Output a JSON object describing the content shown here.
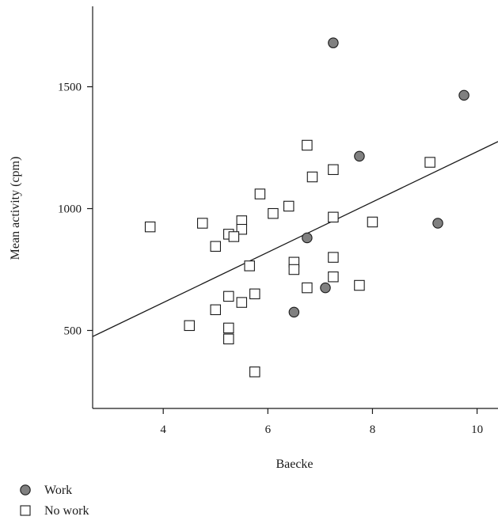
{
  "chart_data": {
    "type": "scatter",
    "title": "",
    "xlabel": "Baecke",
    "ylabel": "Mean activity (cpm)",
    "xlim": [
      2.65,
      10.4
    ],
    "ylim": [
      180,
      1830
    ],
    "xticks": [
      4,
      6,
      8,
      10
    ],
    "yticks": [
      500,
      1000,
      1500
    ],
    "grid": false,
    "legend_position": "bottom-left",
    "regression_line": {
      "x": [
        2.65,
        10.4
      ],
      "y": [
        475,
        1275
      ]
    },
    "series": [
      {
        "name": "Work",
        "marker": "circle",
        "color": "#808080",
        "points": [
          {
            "x": 7.25,
            "y": 1680
          },
          {
            "x": 9.75,
            "y": 1465
          },
          {
            "x": 7.75,
            "y": 1215
          },
          {
            "x": 9.25,
            "y": 940
          },
          {
            "x": 6.75,
            "y": 880
          },
          {
            "x": 7.1,
            "y": 675
          },
          {
            "x": 6.5,
            "y": 575
          }
        ]
      },
      {
        "name": "No work",
        "marker": "square",
        "color": "#ffffff",
        "points": [
          {
            "x": 6.75,
            "y": 1260
          },
          {
            "x": 9.1,
            "y": 1190
          },
          {
            "x": 7.25,
            "y": 1160
          },
          {
            "x": 6.85,
            "y": 1130
          },
          {
            "x": 5.85,
            "y": 1060
          },
          {
            "x": 6.4,
            "y": 1010
          },
          {
            "x": 6.1,
            "y": 980
          },
          {
            "x": 7.25,
            "y": 965
          },
          {
            "x": 5.5,
            "y": 950
          },
          {
            "x": 8.0,
            "y": 945
          },
          {
            "x": 4.75,
            "y": 940
          },
          {
            "x": 3.75,
            "y": 925
          },
          {
            "x": 5.5,
            "y": 915
          },
          {
            "x": 5.25,
            "y": 895
          },
          {
            "x": 5.35,
            "y": 885
          },
          {
            "x": 5.0,
            "y": 845
          },
          {
            "x": 7.25,
            "y": 800
          },
          {
            "x": 6.5,
            "y": 780
          },
          {
            "x": 5.65,
            "y": 765
          },
          {
            "x": 6.5,
            "y": 750
          },
          {
            "x": 7.25,
            "y": 720
          },
          {
            "x": 7.75,
            "y": 685
          },
          {
            "x": 6.75,
            "y": 675
          },
          {
            "x": 5.75,
            "y": 650
          },
          {
            "x": 5.25,
            "y": 640
          },
          {
            "x": 5.5,
            "y": 615
          },
          {
            "x": 5.0,
            "y": 585
          },
          {
            "x": 4.5,
            "y": 520
          },
          {
            "x": 5.25,
            "y": 510
          },
          {
            "x": 5.25,
            "y": 465
          },
          {
            "x": 5.75,
            "y": 330
          }
        ]
      }
    ]
  }
}
